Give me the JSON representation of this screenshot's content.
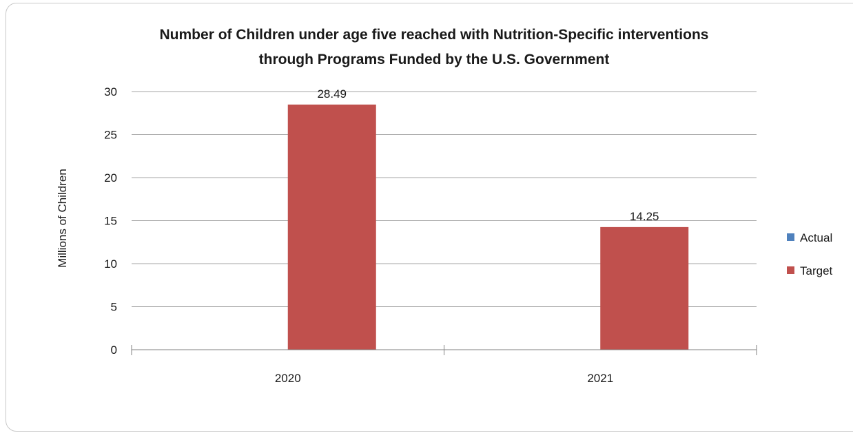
{
  "chart_data": {
    "type": "bar",
    "title_lines": [
      "Number of Children under age five reached with Nutrition-Specific interventions",
      "through Programs Funded by the U.S. Government"
    ],
    "ylabel": "Millions of Children",
    "xlabel": "",
    "categories": [
      "2020",
      "2021"
    ],
    "series": [
      {
        "name": "Actual",
        "color": "#4F81BD",
        "values": [
          null,
          null
        ]
      },
      {
        "name": "Target",
        "color": "#C0504D",
        "values": [
          28.49,
          14.25
        ]
      }
    ],
    "data_labels": [
      [
        null,
        null
      ],
      [
        "28.49",
        "14.25"
      ]
    ],
    "ylim": [
      0,
      30
    ],
    "yticks": [
      "0",
      "5",
      "10",
      "15",
      "20",
      "25",
      "30"
    ],
    "grid": true,
    "legend_position": "right"
  }
}
